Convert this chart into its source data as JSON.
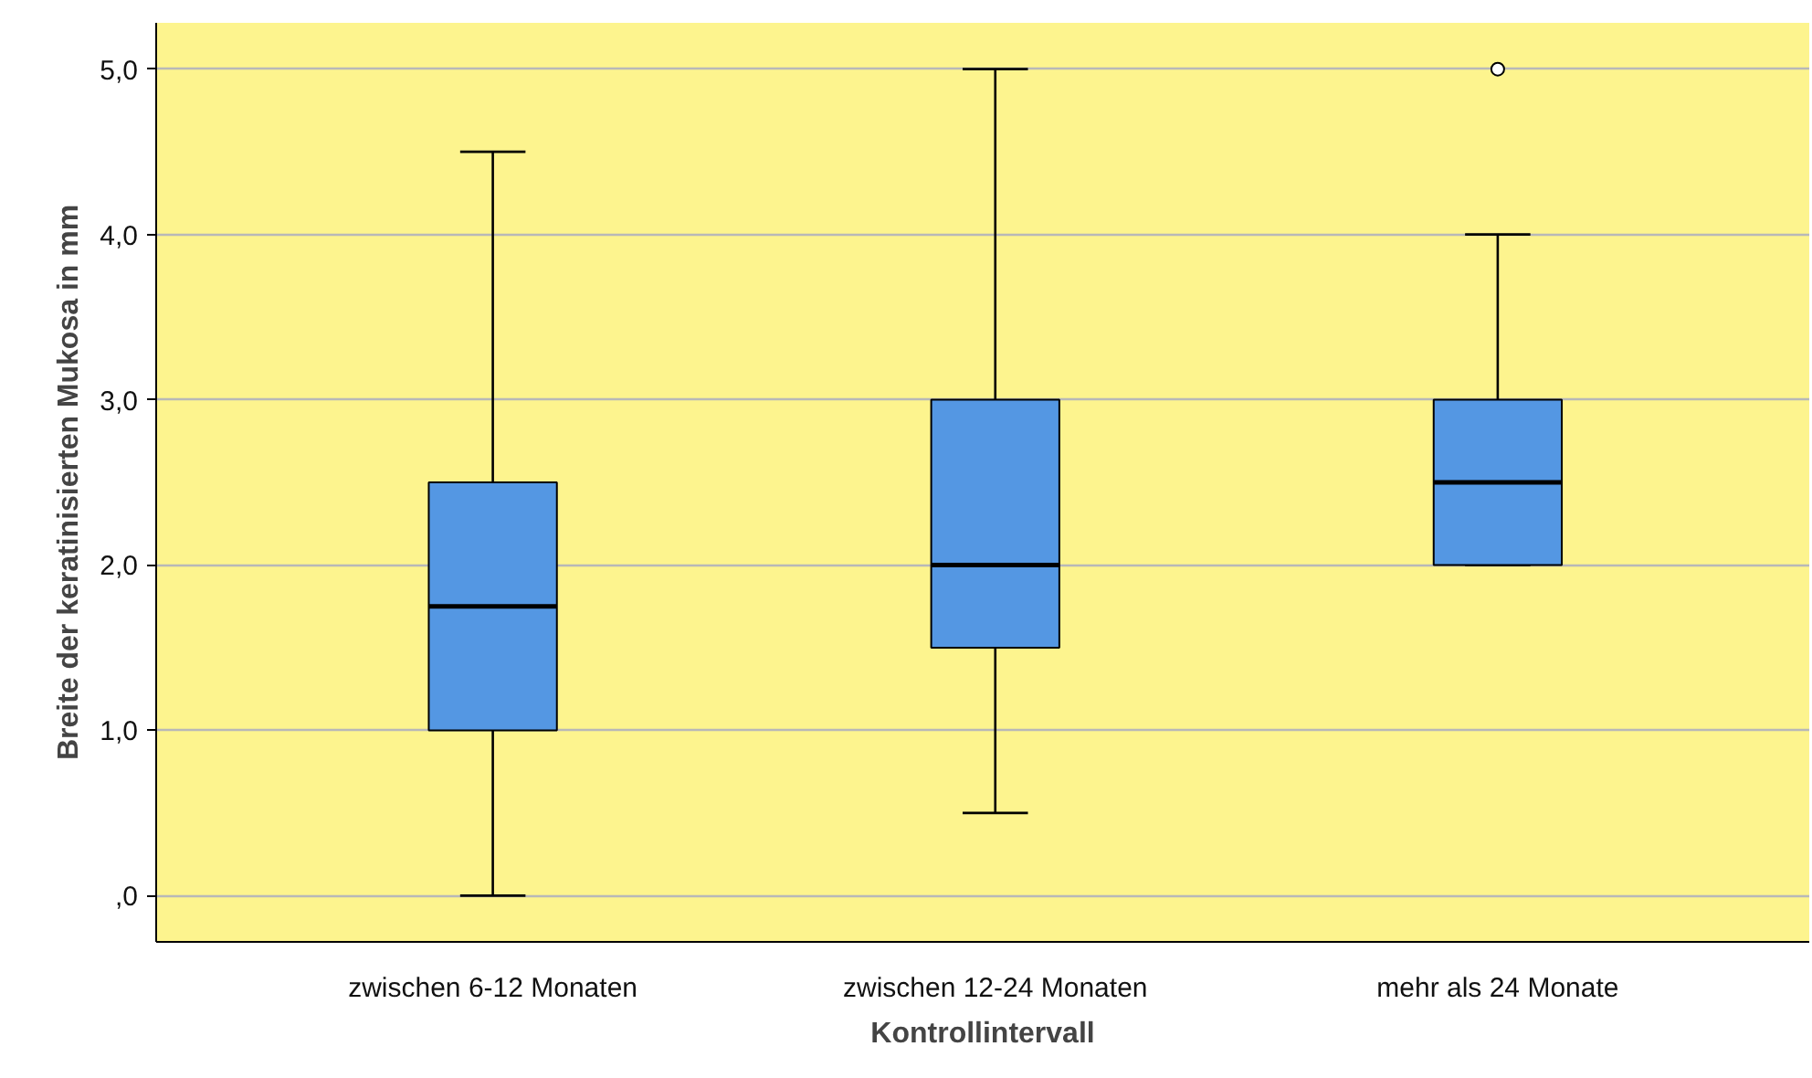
{
  "chart_data": {
    "type": "box",
    "xlabel": "Kontrollintervall",
    "ylabel": "Breite der keratinisierten Mukosa in mm",
    "categories": [
      "zwischen 6-12 Monaten",
      "zwischen 12-24 Monaten",
      "mehr als 24 Monate"
    ],
    "boxes": [
      {
        "low": 0,
        "q1": 1,
        "median": 1.75,
        "q3": 2.5,
        "high": 4.5
      },
      {
        "low": 0.5,
        "q1": 1.5,
        "median": 2,
        "q3": 3,
        "high": 5
      },
      {
        "low": 2,
        "q1": 2,
        "median": 2.5,
        "q3": 3,
        "high": 4,
        "outliers": [
          5
        ]
      }
    ],
    "color": "#5497e3",
    "ylim": [
      -0.28,
      5.28
    ],
    "yticks": [
      {
        "value": 0,
        "label": ",0"
      },
      {
        "value": 1,
        "label": "1,0"
      },
      {
        "value": 2,
        "label": "2,0"
      },
      {
        "value": 3,
        "label": "3,0"
      },
      {
        "value": 4,
        "label": "4,0"
      },
      {
        "value": 5,
        "label": "5,0"
      }
    ],
    "grid": "y"
  }
}
